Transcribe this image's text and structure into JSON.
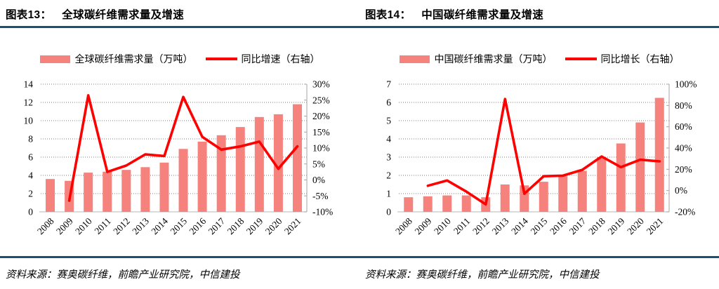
{
  "colors": {
    "bar": "#F5827D",
    "line": "#FF0000",
    "rule": "#1C4F76",
    "grid": "#808080",
    "axis_line": "#A6A6A6",
    "baseline": "#C6C6C6",
    "text": "#000000"
  },
  "figures": [
    {
      "title_num": "图表13：",
      "title_text": "全球碳纤维需求量及增速",
      "legend": [
        {
          "type": "bar",
          "label": "全球碳纤维需求量（万吨）"
        },
        {
          "type": "line",
          "label": "同比增速（右轴）"
        }
      ],
      "source": "资料来源：赛奥碳纤维，前瞻产业研究院，中信建投",
      "chart_data": {
        "type": "bar",
        "categories": [
          "2008",
          "2009",
          "2010",
          "2011",
          "2012",
          "2013",
          "2014",
          "2015",
          "2016",
          "2017",
          "2018",
          "2019",
          "2020",
          "2021"
        ],
        "series": [
          {
            "name": "全球碳纤维需求量（万吨）",
            "type": "bar",
            "axis": "left",
            "values": [
              3.6,
              3.4,
              4.3,
              4.4,
              4.6,
              4.9,
              5.4,
              6.9,
              7.7,
              8.4,
              9.3,
              10.4,
              10.7,
              11.8
            ]
          },
          {
            "name": "同比增速（右轴）",
            "type": "line",
            "axis": "right",
            "values": [
              null,
              -6.5,
              26.5,
              2.5,
              4.5,
              8,
              7.5,
              26,
              13.5,
              9.5,
              10.5,
              12,
              3.5,
              10.5
            ]
          }
        ],
        "y_left": {
          "min": 0,
          "max": 14,
          "step": 2,
          "suffix": ""
        },
        "y_right": {
          "min": -10,
          "max": 30,
          "step": 5,
          "suffix": "%"
        },
        "grid": true,
        "legend_position": "top"
      }
    },
    {
      "title_num": "图表14：",
      "title_text": "中国碳纤维需求量及增速",
      "legend": [
        {
          "type": "bar",
          "label": "中国碳纤维需求量（万吨）"
        },
        {
          "type": "line",
          "label": "同比增长（右轴）"
        }
      ],
      "source": "资料来源：赛奥碳纤维，前瞻产业研究院，中信建投",
      "chart_data": {
        "type": "bar",
        "categories": [
          "2008",
          "2009",
          "2010",
          "2011",
          "2012",
          "2013",
          "2014",
          "2015",
          "2016",
          "2017",
          "2018",
          "2019",
          "2020",
          "2021"
        ],
        "series": [
          {
            "name": "中国碳纤维需求量（万吨）",
            "type": "bar",
            "axis": "left",
            "values": [
              0.8,
              0.85,
              0.9,
              0.9,
              0.8,
              1.5,
              1.45,
              1.65,
              1.95,
              2.25,
              3.0,
              3.75,
              4.9,
              6.25
            ]
          },
          {
            "name": "同比增长（右轴）",
            "type": "line",
            "axis": "right",
            "values": [
              null,
              4.5,
              9.5,
              -1,
              -13,
              86,
              -3,
              13.5,
              14,
              19.5,
              32,
              22,
              29,
              27.5
            ]
          }
        ],
        "y_left": {
          "min": 0,
          "max": 7,
          "step": 1,
          "suffix": ""
        },
        "y_right": {
          "min": -20,
          "max": 100,
          "step": 20,
          "suffix": "%"
        },
        "grid": true,
        "legend_position": "top"
      }
    }
  ]
}
